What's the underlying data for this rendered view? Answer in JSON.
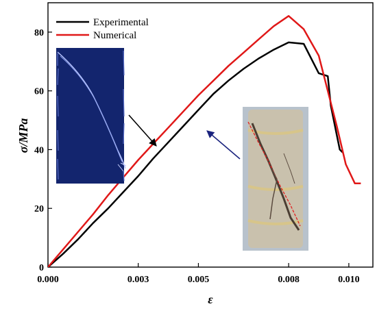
{
  "chart_data": {
    "type": "line",
    "title": "",
    "xlabel": "ε",
    "ylabel": "σ/MPa",
    "xlim": [
      0,
      0.0108
    ],
    "ylim": [
      0,
      90
    ],
    "x_ticks": [
      0.0,
      0.003,
      0.005,
      0.008,
      0.01
    ],
    "x_tick_labels": [
      "0.000",
      "0.003",
      "0.005",
      "0.008",
      "0.010"
    ],
    "y_ticks": [
      0,
      20,
      40,
      60,
      80
    ],
    "y_tick_labels": [
      "0",
      "20",
      "40",
      "60",
      "80"
    ],
    "grid": false,
    "legend_position": "top-left",
    "series": [
      {
        "name": "Experimental",
        "color": "#000000",
        "x": [
          0,
          0.0005,
          0.001,
          0.0015,
          0.002,
          0.0025,
          0.003,
          0.0035,
          0.004,
          0.0045,
          0.005,
          0.0055,
          0.006,
          0.0065,
          0.007,
          0.0075,
          0.008,
          0.0085,
          0.009,
          0.0093,
          0.0094,
          0.0096,
          0.0097,
          0.0098
        ],
        "y": [
          0,
          4.5,
          9.5,
          15,
          20,
          25.5,
          31,
          37,
          42.5,
          48,
          53.5,
          59,
          63.5,
          67.5,
          71,
          74,
          76.5,
          76,
          66,
          65,
          55,
          45,
          40,
          39
        ]
      },
      {
        "name": "Numerical",
        "color": "#e01818",
        "x": [
          0,
          0.0005,
          0.001,
          0.0015,
          0.002,
          0.0025,
          0.003,
          0.0035,
          0.004,
          0.0045,
          0.005,
          0.0055,
          0.006,
          0.0065,
          0.007,
          0.0075,
          0.008,
          0.0085,
          0.009,
          0.0093,
          0.0096,
          0.0099,
          0.0102,
          0.0104
        ],
        "y": [
          0,
          6,
          12,
          18,
          24.5,
          30.5,
          36.5,
          42,
          47.5,
          53,
          58.5,
          63.5,
          68.5,
          73,
          77.5,
          82,
          85.5,
          81,
          72,
          60,
          48,
          35,
          28.5,
          28.5
        ]
      }
    ],
    "annotations": [
      {
        "type": "inset-image",
        "name": "simulated crack pattern",
        "arrow_color": "#000000",
        "points_to_series": "Numerical"
      },
      {
        "type": "inset-image",
        "name": "experimental specimen photo",
        "arrow_color": "#1a237e",
        "points_to_series": "Experimental"
      }
    ]
  }
}
